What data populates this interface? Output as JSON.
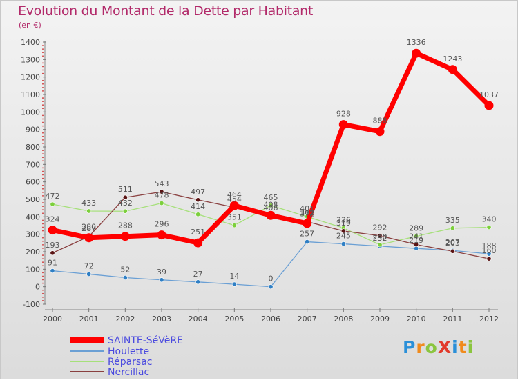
{
  "header": {
    "title": "Evolution du Montant de la Dette par Habitant",
    "subtitle": "(en €)"
  },
  "logo": {
    "text": "ProXiti"
  },
  "chart_data": {
    "type": "line",
    "title": "Evolution du Montant de la Dette par Habitant",
    "subtitle": "(en €)",
    "x": [
      "2000",
      "2001",
      "2002",
      "2003",
      "2004",
      "2005",
      "2006",
      "2007",
      "2008",
      "2009",
      "2010",
      "2011",
      "2012"
    ],
    "ylim": [
      -100,
      1400
    ],
    "yticks": [
      -100,
      0,
      100,
      200,
      300,
      400,
      500,
      600,
      700,
      800,
      900,
      1000,
      1100,
      1200,
      1300,
      1400
    ],
    "grid": false,
    "legend_position": "bottom-left",
    "series": [
      {
        "name": "SAINTE-SéVèRE",
        "color": "#ff0000",
        "marker_color": "#ff0000",
        "width": 7,
        "values": [
          324,
          280,
          288,
          296,
          251,
          464,
          408,
          362,
          928,
          888,
          1336,
          1243,
          1037
        ]
      },
      {
        "name": "Houlette",
        "color": "#6a9fd4",
        "marker_color": "#2f7fc4",
        "width": 1.3,
        "values": [
          91,
          72,
          52,
          39,
          27,
          14,
          0,
          257,
          245,
          232,
          219,
          207,
          188
        ]
      },
      {
        "name": "Réparsac",
        "color": "#a6e07a",
        "marker_color": "#7ccf3c",
        "width": 1.3,
        "values": [
          472,
          433,
          432,
          478,
          414,
          351,
          465,
          401,
          336,
          240,
          289,
          335,
          340
        ]
      },
      {
        "name": "Nercillac",
        "color": "#8a4040",
        "marker_color": "#5a1414",
        "width": 1.3,
        "values": [
          193,
          287,
          511,
          543,
          497,
          454,
          406,
          372,
          319,
          292,
          241,
          203,
          160
        ]
      }
    ]
  }
}
